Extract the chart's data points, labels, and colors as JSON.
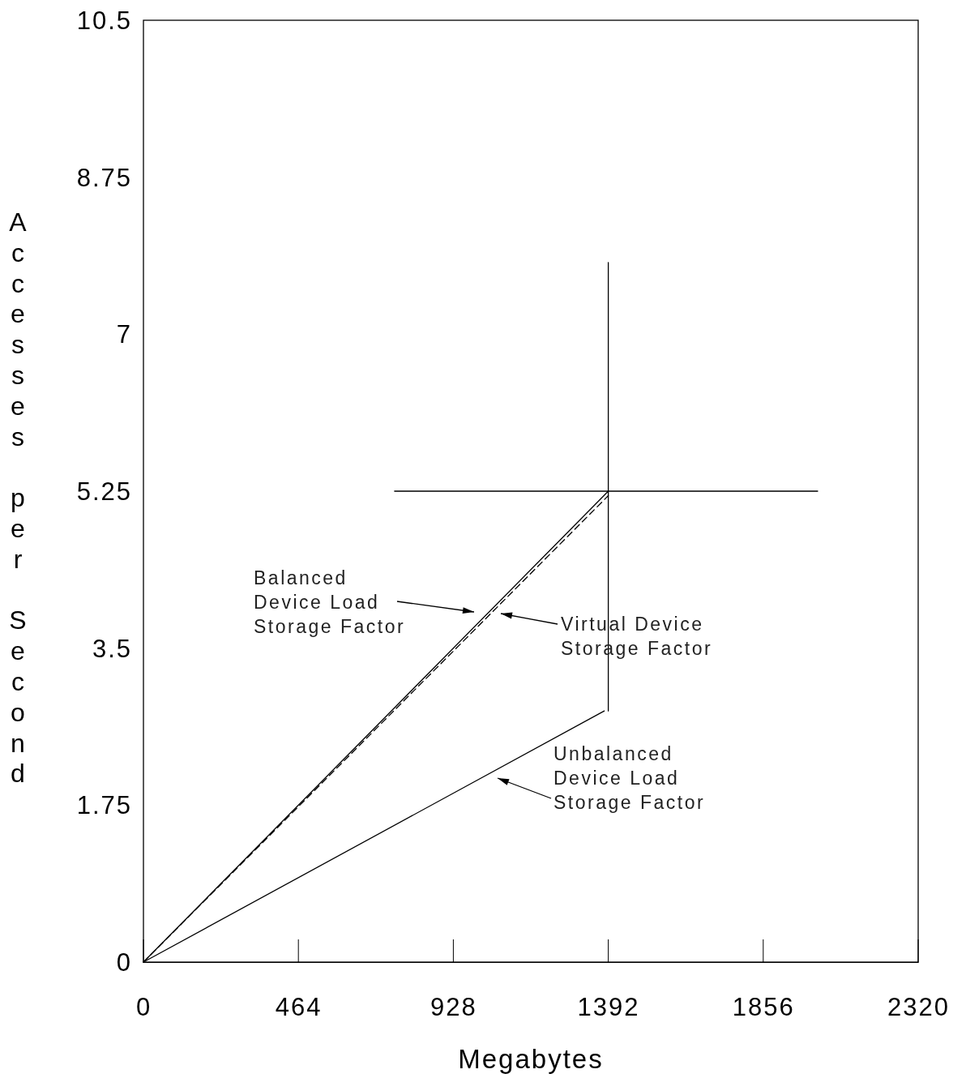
{
  "chart_data": {
    "type": "line",
    "xlabel": "Megabytes",
    "ylabel": "Accesses per Second",
    "xlim": [
      0,
      2320
    ],
    "xticks": [
      0,
      464,
      928,
      1392,
      1856,
      2320
    ],
    "ylim": [
      0,
      10.5
    ],
    "yticks": [
      0,
      1.75,
      3.5,
      5.25,
      7,
      8.75,
      10.5
    ],
    "grid": false,
    "marker": "none",
    "series": [
      {
        "color": "#000000",
        "x": [
          0,
          1392
        ],
        "values": [
          0,
          5.25
        ],
        "line_style": "solid"
      },
      {
        "color": "#000000",
        "x": [
          0,
          1392
        ],
        "values": [
          0,
          5.2
        ],
        "line_style": "dashed"
      },
      {
        "color": "#000000",
        "x": [
          0,
          1380
        ],
        "values": [
          0,
          2.8
        ],
        "line_style": "solid"
      },
      {
        "color": "#000000",
        "x": [
          1392,
          1392
        ],
        "values": [
          2.8,
          7.8
        ],
        "line_style": "solid"
      },
      {
        "color": "#000000",
        "x": [
          752,
          2019
        ],
        "values": [
          5.25,
          5.25
        ],
        "line_style": "solid"
      }
    ],
    "annotations": [
      "Balanced\nDevice Load\nStorage Factor",
      "Virtual Device\nStorage Factor",
      "Unbalanced\nDevice Load\nStorage Factor"
    ]
  }
}
